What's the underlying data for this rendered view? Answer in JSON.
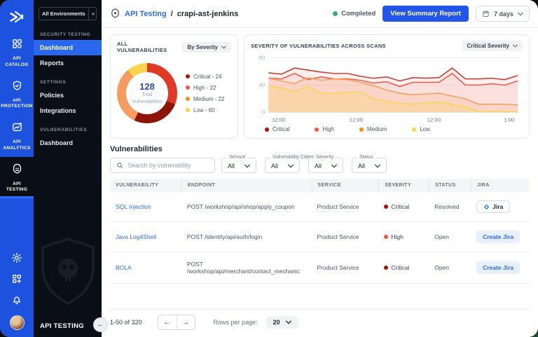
{
  "colors": {
    "rail_blue": "#1C52DE",
    "sidebar_dark": "#0A0E16",
    "accent_blue": "#2356E8",
    "link_blue": "#2F6BEA",
    "status_green": "#2DB564",
    "critical": "#A31409",
    "high": "#F25741",
    "medium": "#F59016",
    "low": "#FFD23E"
  },
  "rail": {
    "items": [
      {
        "label": "API CATALOG",
        "icon": "api-catalog-icon",
        "active": false
      },
      {
        "label": "API PROTECTION",
        "icon": "api-protection-icon",
        "active": false
      },
      {
        "label": "API ANALYTICS",
        "icon": "api-analytics-icon",
        "active": false
      },
      {
        "label": "API TESTING",
        "icon": "api-testing-icon",
        "active": true
      }
    ]
  },
  "sidebar": {
    "environment": {
      "label": "All Environments",
      "expander": "»"
    },
    "sections": [
      {
        "title": "SECURITY TESTING",
        "items": [
          {
            "label": "Dashboard",
            "active": true
          },
          {
            "label": "Reports",
            "active": false
          }
        ]
      },
      {
        "title": "SETTINGS",
        "items": [
          {
            "label": "Policies",
            "active": false
          },
          {
            "label": "Integrations",
            "active": false
          }
        ]
      },
      {
        "title": "VULNERABILITIES",
        "items": [
          {
            "label": "Dashboard",
            "active": false
          }
        ]
      }
    ],
    "footer_label": "API TESTING"
  },
  "header": {
    "breadcrumb": {
      "product": "API Testing",
      "separator": "/",
      "current": "crapi-ast-jenkins"
    },
    "status": {
      "label": "Completed",
      "color": "#2DB564"
    },
    "report_button": "View Summary Report",
    "date_range": "7 days"
  },
  "donut_card": {
    "title": "ALL VULNERABILITIES",
    "dropdown": "By Severity",
    "center_value": "128",
    "center_label_line1": "Total",
    "center_label_line2": "Vulnerabilities"
  },
  "chart_card": {
    "title": "SEVERITY OF VULNERABILITIES ACROSS SCANS",
    "dropdown": "Critical Severity"
  },
  "chart_data": [
    {
      "type": "pie",
      "title": "ALL VULNERABILITIES",
      "labels": [
        "Critical",
        "High",
        "Medium",
        "Low"
      ],
      "values": [
        24,
        22,
        22,
        60
      ],
      "total": 128,
      "center_label": "Total Vulnerabilities",
      "legend_colors": [
        "#A31409",
        "#F25741",
        "#F59016",
        "#FFD23E"
      ],
      "legend_position": "right",
      "visual_segments": [
        {
          "color": "#DF3A28",
          "pct": 31
        },
        {
          "color": "#8F1408",
          "pct": 26
        },
        {
          "color": "#F69C5E",
          "pct": 32
        },
        {
          "color": "#F9D44C",
          "pct": 11
        }
      ]
    },
    {
      "type": "area",
      "title": "SEVERITY OF VULNERABILITIES ACROSS SCANS",
      "ylim": [
        0,
        80
      ],
      "y_ticks": [
        "80",
        "40",
        "0"
      ],
      "x_ticks": [
        "12:00",
        "12:00",
        "12:00",
        "1:00"
      ],
      "x_tick_pct": [
        4,
        35,
        66,
        96
      ],
      "grid": true,
      "legend_position": "bottom",
      "series": [
        {
          "name": "Critical",
          "color": "#C4372A",
          "fill": "rgba(214,69,53,0.08)",
          "values": [
            58,
            56,
            65,
            62,
            59,
            57,
            57,
            53,
            50,
            52,
            46,
            51,
            50,
            51,
            65,
            49,
            49,
            50,
            48,
            54
          ]
        },
        {
          "name": "High",
          "color": "#F25741",
          "fill": "rgba(242,89,75,0.10)",
          "values": [
            50,
            49,
            57,
            48,
            52,
            49,
            49,
            47,
            43,
            45,
            38,
            44,
            44,
            44,
            57,
            40,
            40,
            42,
            40,
            46
          ]
        },
        {
          "name": "Medium",
          "color": "#F59F5E",
          "fill": "rgba(246,160,95,0.18)",
          "values": [
            50,
            46,
            42,
            51,
            47,
            49,
            48,
            44,
            39,
            33,
            28,
            26,
            27,
            28,
            24,
            20,
            12,
            12,
            12,
            11
          ]
        },
        {
          "name": "Low",
          "color": "#FBD44C",
          "fill": "rgba(255,214,92,0.28)",
          "values": [
            38,
            36,
            30,
            38,
            28,
            28,
            29,
            30,
            20,
            16,
            13,
            12,
            14,
            15,
            12,
            8,
            1,
            1,
            1,
            1
          ]
        }
      ]
    }
  ],
  "vuln_section": {
    "heading": "Vulnerabilities",
    "search_placeholder": "Search by vulnerability",
    "filters": [
      {
        "label": "Service",
        "value": "All"
      },
      {
        "label": "Vulnerability Category",
        "value": "All"
      },
      {
        "label": "Severity",
        "value": "All"
      },
      {
        "label": "Status",
        "value": "All"
      }
    ]
  },
  "table": {
    "columns": [
      "VULNERABILITY",
      "ENDPOINT",
      "SERVICE",
      "SEVERITY",
      "STATUS",
      "JIRA"
    ],
    "severity_colors": {
      "Critical": "#A31409",
      "High": "#F25741",
      "Medium": "#F59016",
      "Low": "#FFD23E"
    },
    "rows": [
      {
        "vulnerability": "SQL Injection",
        "endpoint": "POST /workshop/api/shop/apply_coupon",
        "service": "Product Service",
        "severity": "Critical",
        "status": "Resolved",
        "jira_type": "linked",
        "jira_label": "Jira"
      },
      {
        "vulnerability": "Java Log4Shell",
        "endpoint": "POST /identity/api/auth/login",
        "service": "Product Service",
        "severity": "High",
        "status": "Open",
        "jira_type": "create",
        "jira_label": "Create Jira"
      },
      {
        "vulnerability": "BOLA",
        "endpoint": "POST /workshop/api/merchant/contact_mechanic",
        "service": "Product Service",
        "severity": "Critical",
        "status": "Open",
        "jira_type": "create",
        "jira_label": "Create Jira"
      }
    ]
  },
  "pagination": {
    "range": "1-50 of 320",
    "prev": "←",
    "next": "→",
    "rows_per_page_label": "Rows per page:",
    "rows_per_page": "20"
  }
}
